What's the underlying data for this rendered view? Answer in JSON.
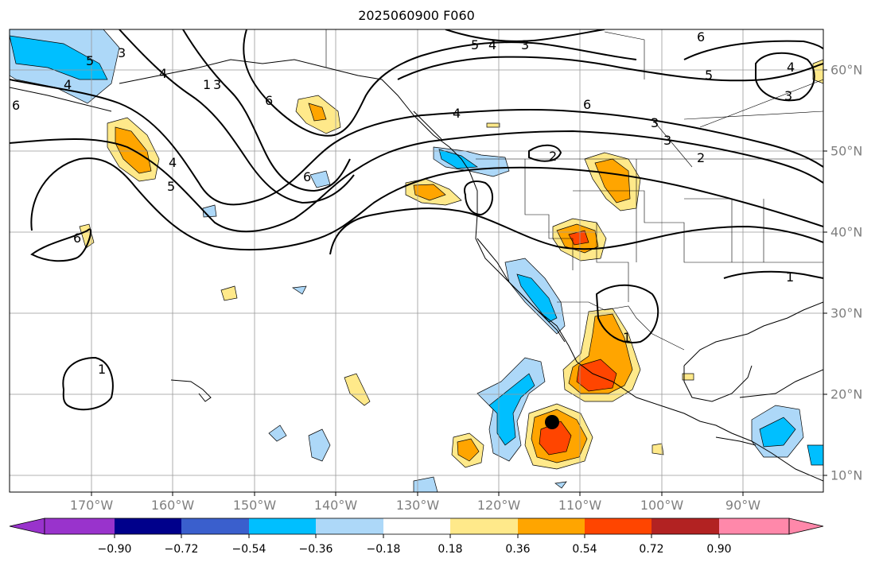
{
  "title": "2025060900 F060",
  "lon_labels": [
    "170°W",
    "160°W",
    "150°W",
    "140°W",
    "130°W",
    "120°W",
    "110°W",
    "100°W",
    "90°W"
  ],
  "lat_labels": [
    "60°N",
    "50°N",
    "40°N",
    "30°N",
    "20°N",
    "10°N"
  ],
  "colorbar": {
    "ticks": [
      "−0.90",
      "−0.72",
      "−0.54",
      "−0.36",
      "−0.18",
      "0.18",
      "0.36",
      "0.54",
      "0.72",
      "0.90"
    ],
    "colors": [
      "#9933cc",
      "#00008b",
      "#3a5fcd",
      "#00bfff",
      "#add8f8",
      "#ffffff",
      "#ffe98a",
      "#ffa500",
      "#ff4500",
      "#b22222",
      "#ff88aa"
    ]
  },
  "contour_labels": [
    "5",
    "3",
    "4",
    "3",
    "6",
    "4",
    "3",
    "6",
    "6",
    "5",
    "4",
    "4",
    "1",
    "6",
    "4",
    "6",
    "2",
    "3",
    "5",
    "3",
    "3",
    "2",
    "5",
    "4",
    "6",
    "1",
    "1",
    "1"
  ],
  "marker": "storm-center-marker"
}
